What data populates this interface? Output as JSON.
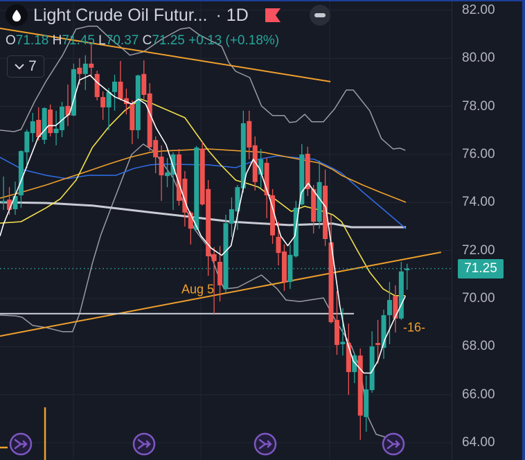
{
  "header": {
    "symbol_title": "Light Crude Oil Futur...",
    "interval": "· 1D",
    "icon": "droplet-icon",
    "flag_icon": "red-flag-icon",
    "flag_color": "#f7525f",
    "collapse_icon": "minus-icon"
  },
  "ohlc": {
    "o_label": "O",
    "o_value": "71.18",
    "h_label": "H",
    "h_value": "71.45",
    "l_label": "L",
    "l_value": "70.37",
    "c_label": "C",
    "c_value": "71.25",
    "change": "+0.13 (+0.18%)"
  },
  "indicators_toggle": {
    "icon": "chevron-down-icon",
    "count": "7"
  },
  "price_axis": {
    "ticks": [
      "82.00",
      "80.00",
      "78.00",
      "76.00",
      "74.00",
      "72.00",
      "70.00",
      "68.00",
      "66.00",
      "64.00"
    ],
    "last_price_tag": "71.25"
  },
  "annotations": {
    "date_label": "Aug 5",
    "count_label": "-16-"
  },
  "colors": {
    "background": "#161a25",
    "up": "#26a69a",
    "down": "#ef5350",
    "ma_fast": "#ffffff",
    "ma_yellow": "#f2e04a",
    "ma_orange": "#f0a02c",
    "ma_blue": "#2f6be0",
    "ma_long": "#c9ccd4",
    "bands": "#9a9ca3",
    "drawing": "#f0a02c",
    "marker": "#7e57c2"
  },
  "chart_data": {
    "type": "candlestick",
    "title": "Light Crude Oil Futures · 1D",
    "ylim": [
      63.28,
      82.43
    ],
    "xlim_bar_index": [
      -0.6,
      76.6
    ],
    "y_ticks": [
      64,
      66,
      68,
      70,
      72,
      74,
      76,
      78,
      80,
      82
    ],
    "grid": true,
    "last_price": 71.25,
    "ohlc": [
      [
        74.0,
        75.08,
        73.69,
        74.07
      ],
      [
        74.12,
        74.64,
        73.49,
        73.69
      ],
      [
        73.72,
        74.87,
        73.49,
        74.27
      ],
      [
        74.3,
        76.17,
        73.78,
        76.14
      ],
      [
        76.09,
        77.04,
        75.42,
        76.95
      ],
      [
        76.89,
        77.73,
        76.52,
        77.38
      ],
      [
        77.44,
        77.96,
        76.58,
        76.72
      ],
      [
        76.61,
        77.96,
        76.43,
        77.93
      ],
      [
        77.87,
        78.08,
        76.75,
        76.89
      ],
      [
        76.89,
        77.82,
        76.38,
        77.07
      ],
      [
        77.01,
        78.19,
        76.72,
        77.99
      ],
      [
        78.02,
        78.91,
        77.18,
        77.62
      ],
      [
        77.62,
        79.78,
        77.59,
        79.55
      ],
      [
        79.61,
        80.0,
        78.91,
        79.35
      ],
      [
        79.35,
        80.13,
        78.68,
        79.78
      ],
      [
        79.78,
        80.6,
        79.2,
        79.61
      ],
      [
        79.35,
        79.49,
        78.25,
        78.39
      ],
      [
        78.39,
        78.62,
        77.44,
        77.96
      ],
      [
        77.96,
        78.77,
        77.01,
        78.6
      ],
      [
        78.6,
        79.32,
        77.82,
        79.03
      ],
      [
        79.03,
        79.89,
        78.25,
        78.31
      ],
      [
        78.34,
        78.74,
        77.67,
        78.1
      ],
      [
        78.1,
        78.25,
        76.43,
        77.01
      ],
      [
        77.01,
        79.32,
        76.66,
        79.29
      ],
      [
        79.35,
        79.92,
        78.31,
        78.48
      ],
      [
        78.54,
        78.97,
        76.14,
        76.3
      ],
      [
        76.6,
        76.75,
        75.22,
        75.88
      ],
      [
        75.91,
        76.38,
        74.07,
        75.13
      ],
      [
        75.1,
        75.85,
        74.64,
        75.25
      ],
      [
        75.16,
        76.09,
        73.69,
        76.0
      ],
      [
        76.0,
        76.23,
        73.87,
        74.07
      ],
      [
        74.99,
        75.31,
        73.0,
        73.58
      ],
      [
        73.58,
        73.64,
        72.25,
        72.91
      ],
      [
        72.86,
        76.35,
        72.86,
        76.29
      ],
      [
        76.23,
        76.52,
        73.87,
        73.92
      ],
      [
        74.56,
        74.93,
        70.95,
        71.76
      ],
      [
        71.85,
        72.14,
        69.37,
        71.56
      ],
      [
        71.53,
        72.19,
        69.88,
        70.55
      ],
      [
        70.4,
        73.49,
        70.26,
        73.14
      ],
      [
        73.12,
        74.21,
        72.57,
        73.72
      ],
      [
        73.63,
        74.73,
        72.86,
        74.64
      ],
      [
        74.59,
        77.82,
        74.41,
        77.3
      ],
      [
        77.39,
        77.82,
        75.8,
        76.29
      ],
      [
        76.38,
        76.75,
        74.5,
        74.85
      ],
      [
        75.16,
        76.23,
        74.59,
        75.8
      ],
      [
        75.65,
        75.86,
        73.35,
        74.3
      ],
      [
        74.3,
        74.56,
        72.28,
        72.63
      ],
      [
        72.57,
        73.2,
        71.38,
        71.9
      ],
      [
        71.96,
        72.25,
        70.32,
        70.69
      ],
      [
        70.69,
        72.25,
        70.4,
        71.82
      ],
      [
        71.76,
        74.07,
        71.7,
        73.78
      ],
      [
        73.92,
        76.43,
        73.87,
        76.0
      ],
      [
        76.03,
        76.32,
        74.27,
        74.56
      ],
      [
        74.56,
        74.73,
        72.71,
        73.2
      ],
      [
        73.2,
        75.74,
        72.91,
        74.85
      ],
      [
        74.7,
        75.37,
        72.19,
        72.48
      ],
      [
        72.34,
        73.49,
        68.96,
        69.02
      ],
      [
        69.11,
        70.32,
        67.66,
        68.07
      ],
      [
        68.1,
        69.6,
        67.63,
        68.2
      ],
      [
        68.15,
        68.96,
        65.99,
        66.94
      ],
      [
        66.94,
        67.72,
        66.48,
        67.63
      ],
      [
        67.63,
        67.92,
        64.12,
        65.13
      ],
      [
        65.07,
        66.8,
        64.46,
        66.22
      ],
      [
        66.19,
        68.64,
        66.08,
        68.01
      ],
      [
        68.15,
        69.11,
        67.29,
        68.07
      ],
      [
        67.95,
        69.54,
        67.49,
        69.31
      ],
      [
        69.31,
        70.69,
        68.1,
        69.94
      ],
      [
        70.11,
        70.55,
        68.59,
        69.17
      ],
      [
        69.17,
        71.53,
        69.11,
        71.13
      ],
      [
        71.18,
        71.45,
        70.37,
        71.25
      ]
    ],
    "lines": [
      {
        "key": "bands_upper",
        "color_key": "bands",
        "points": [
          [
            -0.6,
            77.01
          ],
          [
            1.8,
            76.95
          ],
          [
            3.0,
            77.04
          ],
          [
            5.3,
            78.19
          ],
          [
            7.3,
            79.06
          ],
          [
            10.1,
            80.13
          ],
          [
            12.4,
            81.22
          ],
          [
            14.5,
            81.34
          ],
          [
            16.0,
            81.34
          ],
          [
            18.4,
            80.79
          ],
          [
            19.9,
            80.5
          ],
          [
            21.6,
            80.13
          ],
          [
            23.9,
            80.27
          ],
          [
            27.0,
            80.79
          ],
          [
            30.2,
            81.22
          ],
          [
            31.8,
            81.28
          ],
          [
            33.4,
            80.99
          ],
          [
            37.3,
            80.5
          ],
          [
            38.5,
            79.84
          ],
          [
            39.7,
            79.46
          ],
          [
            42.1,
            79.2
          ],
          [
            44.1,
            78.02
          ],
          [
            46.0,
            77.62
          ],
          [
            48.0,
            77.62
          ],
          [
            48.9,
            77.33
          ],
          [
            50.0,
            77.36
          ],
          [
            51.5,
            77.67
          ],
          [
            52.7,
            77.36
          ],
          [
            54.7,
            77.36
          ],
          [
            56.6,
            77.9
          ],
          [
            58.6,
            78.68
          ],
          [
            59.8,
            78.68
          ],
          [
            62.6,
            77.82
          ],
          [
            64.6,
            76.66
          ],
          [
            66.6,
            76.23
          ],
          [
            67.8,
            76.26
          ],
          [
            68.7,
            76.17
          ]
        ]
      },
      {
        "key": "bands_lower",
        "color_key": "bands",
        "points": [
          [
            -0.6,
            69.31
          ],
          [
            2.1,
            69.28
          ],
          [
            3.2,
            69.22
          ],
          [
            5.0,
            68.88
          ],
          [
            7.3,
            68.79
          ],
          [
            10.1,
            68.62
          ],
          [
            11.8,
            68.62
          ],
          [
            13.0,
            69.37
          ],
          [
            15.2,
            71.47
          ],
          [
            16.6,
            72.63
          ],
          [
            18.7,
            73.98
          ],
          [
            21.9,
            76.0
          ],
          [
            23.9,
            76.43
          ],
          [
            25.5,
            76.17
          ],
          [
            27.0,
            75.71
          ],
          [
            29.0,
            75.02
          ],
          [
            32.6,
            72.91
          ],
          [
            35.0,
            72.13
          ],
          [
            36.5,
            71.1
          ],
          [
            37.7,
            70.4
          ],
          [
            40.0,
            70.46
          ],
          [
            44.1,
            70.98
          ],
          [
            46.8,
            70.4
          ],
          [
            48.3,
            69.94
          ],
          [
            50.7,
            69.88
          ],
          [
            54.7,
            70.03
          ],
          [
            56.6,
            69.16
          ],
          [
            59.5,
            68.01
          ],
          [
            61.0,
            67.06
          ],
          [
            62.2,
            65.13
          ],
          [
            63.7,
            64.35
          ],
          [
            64.9,
            64.26
          ],
          [
            66.7,
            64.14
          ]
        ]
      },
      {
        "key": "ma_long",
        "color_key": "ma_long",
        "width": 3,
        "points": [
          [
            -0.6,
            74.01
          ],
          [
            7.3,
            73.98
          ],
          [
            15.2,
            73.87
          ],
          [
            25.5,
            73.58
          ],
          [
            31.0,
            73.43
          ],
          [
            38.9,
            73.2
          ],
          [
            48.8,
            73.06
          ],
          [
            56.3,
            73.12
          ],
          [
            59.5,
            72.97
          ],
          [
            68.8,
            72.97
          ]
        ]
      },
      {
        "key": "ma_blue",
        "color_key": "ma_blue",
        "points": [
          [
            -0.6,
            75.88
          ],
          [
            3.3,
            75.37
          ],
          [
            7.3,
            75.13
          ],
          [
            10.9,
            74.99
          ],
          [
            14.5,
            75.13
          ],
          [
            19.2,
            75.13
          ],
          [
            22.3,
            75.42
          ],
          [
            25.1,
            75.57
          ],
          [
            27.0,
            75.6
          ],
          [
            35.0,
            75.57
          ],
          [
            39.7,
            75.45
          ],
          [
            43.6,
            75.8
          ],
          [
            46.8,
            75.94
          ],
          [
            53.1,
            75.8
          ],
          [
            56.3,
            75.42
          ],
          [
            57.8,
            75.22
          ],
          [
            61.4,
            74.44
          ],
          [
            64.6,
            73.78
          ],
          [
            68.8,
            72.91
          ]
        ]
      },
      {
        "key": "ma_orange",
        "color_key": "ma_orange",
        "points": [
          [
            -0.6,
            74.18
          ],
          [
            3.3,
            74.44
          ],
          [
            7.3,
            74.73
          ],
          [
            10.9,
            75.02
          ],
          [
            14.5,
            75.31
          ],
          [
            18.0,
            75.6
          ],
          [
            21.6,
            75.88
          ],
          [
            25.1,
            76.09
          ],
          [
            27.0,
            76.14
          ],
          [
            35.0,
            76.23
          ],
          [
            40.9,
            76.14
          ],
          [
            44.4,
            76.09
          ],
          [
            48.8,
            75.88
          ],
          [
            53.9,
            75.65
          ],
          [
            56.3,
            75.37
          ],
          [
            57.8,
            75.13
          ],
          [
            61.4,
            74.73
          ],
          [
            64.6,
            74.41
          ],
          [
            68.8,
            74.01
          ]
        ]
      },
      {
        "key": "ma_yellow",
        "color_key": "ma_yellow",
        "points": [
          [
            -0.6,
            73.14
          ],
          [
            3.0,
            73.2
          ],
          [
            7.3,
            73.78
          ],
          [
            9.7,
            74.15
          ],
          [
            12.4,
            74.93
          ],
          [
            15.2,
            76.29
          ],
          [
            18.0,
            77.15
          ],
          [
            20.7,
            77.82
          ],
          [
            23.5,
            78.31
          ],
          [
            25.5,
            78.11
          ],
          [
            31.0,
            77.53
          ],
          [
            35.0,
            76.17
          ],
          [
            37.0,
            75.6
          ],
          [
            39.7,
            74.93
          ],
          [
            41.7,
            74.79
          ],
          [
            43.6,
            74.64
          ],
          [
            46.8,
            74.07
          ],
          [
            49.2,
            73.63
          ],
          [
            51.5,
            73.84
          ],
          [
            53.9,
            73.69
          ],
          [
            56.3,
            73.49
          ],
          [
            57.8,
            73.2
          ],
          [
            60.2,
            72.13
          ],
          [
            62.6,
            71.1
          ],
          [
            64.9,
            70.4
          ],
          [
            66.9,
            70.12
          ],
          [
            68.7,
            70.12
          ]
        ]
      },
      {
        "key": "ma_fast",
        "color_key": "ma_fast",
        "points": [
          [
            -0.6,
            72.6
          ],
          [
            0,
            73.1
          ],
          [
            3,
            74.9
          ],
          [
            5.9,
            76.7
          ],
          [
            7.7,
            77.2
          ],
          [
            8.9,
            77.2
          ],
          [
            11.3,
            77.7
          ],
          [
            13,
            79.1
          ],
          [
            14.8,
            79.3
          ],
          [
            16,
            79.0
          ],
          [
            19,
            78.4
          ],
          [
            21.9,
            78.1
          ],
          [
            23.1,
            78.3
          ],
          [
            24.3,
            78.1
          ],
          [
            26.1,
            77.1
          ],
          [
            27.8,
            76.4
          ],
          [
            29,
            75.5
          ],
          [
            31.4,
            73.8
          ],
          [
            33.8,
            72.6
          ],
          [
            35.5,
            72.1
          ],
          [
            37.3,
            71.8
          ],
          [
            38.9,
            72.2
          ],
          [
            40.3,
            73.8
          ],
          [
            41.5,
            75.2
          ],
          [
            42.7,
            75.8
          ],
          [
            43.8,
            75.4
          ],
          [
            45.6,
            74.1
          ],
          [
            47.4,
            72.6
          ],
          [
            48.6,
            72.2
          ],
          [
            49.8,
            72.6
          ],
          [
            50.9,
            74.4
          ],
          [
            52.1,
            74.8
          ],
          [
            53.3,
            74.4
          ],
          [
            55.1,
            73.8
          ],
          [
            56.3,
            71.8
          ],
          [
            57.5,
            69.7
          ],
          [
            58.6,
            68.3
          ],
          [
            59.8,
            67.4
          ],
          [
            61.6,
            66.9
          ],
          [
            62.8,
            66.9
          ],
          [
            64,
            67.4
          ],
          [
            65.2,
            68.3
          ],
          [
            66.9,
            69.2
          ],
          [
            68.7,
            70.1
          ]
        ]
      }
    ],
    "drawings": [
      {
        "key": "trendline_down",
        "points": [
          [
            -0.6,
            81.25
          ],
          [
            55.9,
            79.03
          ]
        ]
      },
      {
        "key": "trendline_up",
        "points": [
          [
            -0.6,
            68.44
          ],
          [
            74.8,
            71.93
          ]
        ]
      },
      {
        "key": "level_line",
        "points": [
          [
            -0.6,
            69.37
          ],
          [
            59.9,
            69.37
          ]
        ]
      }
    ],
    "vertical_marker_bar_index": 7.1,
    "event_markers_bar_index": [
      3.0,
      24.0,
      44.8,
      66.7
    ]
  }
}
